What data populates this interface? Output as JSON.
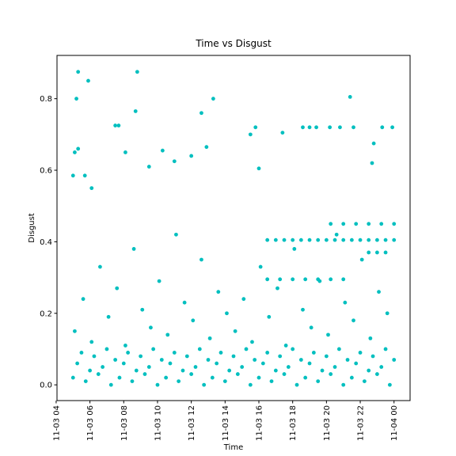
{
  "chart_data": {
    "type": "scatter",
    "title": "Time vs Disgust",
    "xlabel": "Time",
    "ylabel": "Disgust",
    "color": "#00bfbf",
    "xlim": [
      4.05,
      24.95
    ],
    "ylim": [
      -0.044,
      0.921
    ],
    "xticks": [
      {
        "value": 4,
        "label": "11-03 04"
      },
      {
        "value": 6,
        "label": "11-03 06"
      },
      {
        "value": 8,
        "label": "11-03 08"
      },
      {
        "value": 10,
        "label": "11-03 10"
      },
      {
        "value": 12,
        "label": "11-03 12"
      },
      {
        "value": 14,
        "label": "11-03 14"
      },
      {
        "value": 16,
        "label": "11-03 16"
      },
      {
        "value": 18,
        "label": "11-03 18"
      },
      {
        "value": 20,
        "label": "11-03 20"
      },
      {
        "value": 22,
        "label": "11-03 22"
      },
      {
        "value": 24,
        "label": "11-04 00"
      }
    ],
    "yticks": [
      {
        "value": 0,
        "label": "0.0"
      },
      0.2,
      0.4,
      0.6,
      0.8
    ],
    "x": [
      5,
      5.25,
      5.5,
      5.75,
      6,
      6.25,
      6.5,
      6.75,
      7,
      7.25,
      7.5,
      7.75,
      8,
      8.25,
      8.5,
      8.75,
      9,
      9.25,
      9.5,
      9.75,
      10,
      10.25,
      10.5,
      10.75,
      11,
      11.25,
      11.5,
      11.75,
      12,
      12.25,
      12.5,
      12.75,
      13,
      13.25,
      13.5,
      13.75,
      14,
      14.25,
      14.5,
      14.75,
      15,
      15.25,
      15.5,
      15.75,
      16,
      16.25,
      16.5,
      16.75,
      17,
      17.25,
      17.5,
      17.75,
      18,
      18.25,
      18.5,
      18.75,
      19,
      19.25,
      19.5,
      19.75,
      20,
      20.25,
      20.5,
      20.75,
      21,
      21.25,
      21.5,
      21.75,
      22,
      22.25,
      22.5,
      22.75,
      23,
      23.25,
      23.5,
      23.75,
      24,
      5.1,
      5.6,
      6.1,
      6.6,
      7.1,
      7.6,
      8.1,
      8.6,
      9.1,
      9.6,
      10.1,
      10.6,
      11.1,
      11.6,
      12.1,
      12.6,
      13.1,
      13.6,
      14.1,
      14.6,
      15.1,
      15.6,
      16.1,
      16.6,
      17.1,
      17.6,
      18.1,
      18.6,
      19.1,
      19.6,
      20.1,
      20.6,
      21.1,
      21.6,
      22.1,
      22.6,
      23.1,
      23.6,
      16.5,
      17,
      17.5,
      18,
      18.5,
      19,
      19.5,
      20,
      20.5,
      21,
      21.5,
      22,
      22.5,
      23,
      23.5,
      24,
      16.5,
      17.25,
      18,
      18.75,
      19.5,
      20.25,
      21,
      20.25,
      21,
      21.75,
      22.5,
      23.25,
      24,
      22.5,
      23,
      23.5,
      5.3,
      5.2,
      5.9,
      8.8,
      8.7,
      7.5,
      7.7,
      8.1,
      5.1,
      5.3,
      12.6,
      13.3,
      21.4,
      18.6,
      19,
      19.4,
      20.2,
      20.8,
      21.6,
      23.3,
      23.9,
      15.5,
      15.8,
      5,
      5.7,
      6.1,
      10.3,
      12,
      12.9,
      9.5,
      11,
      16,
      22.7,
      22.8,
      17.4
    ],
    "values": [
      0.02,
      0.06,
      0.09,
      0.01,
      0.04,
      0.08,
      0.03,
      0.05,
      0.1,
      0,
      0.07,
      0.02,
      0.06,
      0.09,
      0.01,
      0.04,
      0.08,
      0.03,
      0.05,
      0.1,
      0,
      0.07,
      0.02,
      0.06,
      0.09,
      0.01,
      0.04,
      0.08,
      0.03,
      0.05,
      0.1,
      0,
      0.07,
      0.02,
      0.06,
      0.09,
      0.01,
      0.04,
      0.08,
      0.03,
      0.05,
      0.1,
      0,
      0.07,
      0.02,
      0.06,
      0.09,
      0.01,
      0.04,
      0.08,
      0.03,
      0.05,
      0.1,
      0,
      0.07,
      0.02,
      0.06,
      0.09,
      0.01,
      0.04,
      0.08,
      0.03,
      0.05,
      0.1,
      0,
      0.07,
      0.02,
      0.06,
      0.09,
      0.01,
      0.04,
      0.08,
      0.03,
      0.05,
      0.1,
      0,
      0.07,
      0.15,
      0.24,
      0.12,
      0.33,
      0.19,
      0.27,
      0.11,
      0.38,
      0.21,
      0.16,
      0.29,
      0.14,
      0.42,
      0.23,
      0.18,
      0.35,
      0.13,
      0.26,
      0.2,
      0.15,
      0.24,
      0.12,
      0.33,
      0.19,
      0.27,
      0.11,
      0.38,
      0.21,
      0.16,
      0.29,
      0.14,
      0.42,
      0.23,
      0.18,
      0.35,
      0.13,
      0.26,
      0.2,
      0.405,
      0.405,
      0.405,
      0.405,
      0.405,
      0.405,
      0.405,
      0.405,
      0.405,
      0.405,
      0.405,
      0.405,
      0.405,
      0.405,
      0.405,
      0.405,
      0.295,
      0.295,
      0.295,
      0.295,
      0.295,
      0.295,
      0.295,
      0.45,
      0.45,
      0.45,
      0.45,
      0.45,
      0.45,
      0.37,
      0.37,
      0.37,
      0.875,
      0.8,
      0.85,
      0.875,
      0.765,
      0.725,
      0.725,
      0.65,
      0.65,
      0.66,
      0.76,
      0.8,
      0.805,
      0.72,
      0.72,
      0.72,
      0.72,
      0.72,
      0.72,
      0.72,
      0.72,
      0.7,
      0.72,
      0.585,
      0.585,
      0.55,
      0.655,
      0.64,
      0.665,
      0.61,
      0.625,
      0.605,
      0.62,
      0.675,
      0.705
    ]
  }
}
